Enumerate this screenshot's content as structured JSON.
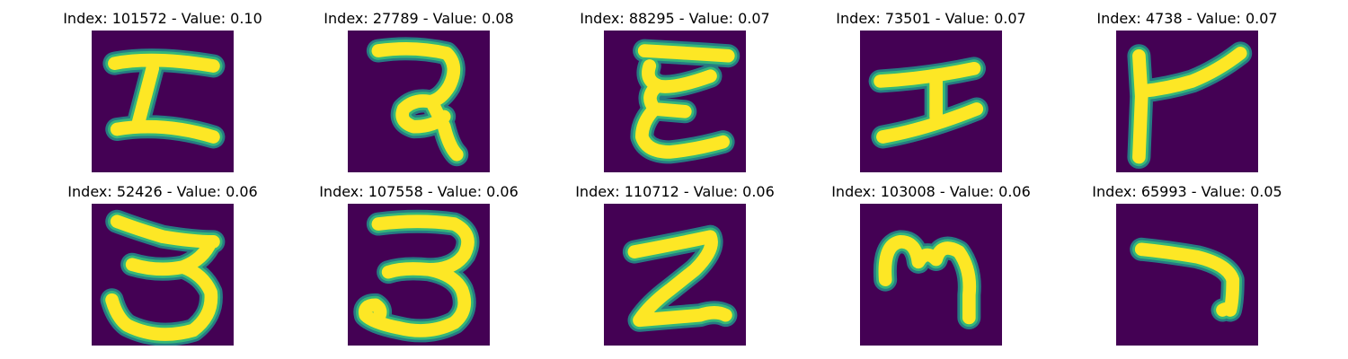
{
  "colors": {
    "background": "#440154",
    "ink": "#fde725",
    "edge": "#35b779",
    "halo": "#21918c"
  },
  "panels": [
    {
      "index": "101572",
      "value": "0.10",
      "title": "Index: 101572 - Value: 0.10",
      "glyph": "stylized-I-shape"
    },
    {
      "index": "27789",
      "value": "0.08",
      "title": "Index: 27789 - Value: 0.08",
      "glyph": "devanagari-ra-like-shape"
    },
    {
      "index": "88295",
      "value": "0.07",
      "title": "Index: 88295 - Value: 0.07",
      "glyph": "stacked-E-shape"
    },
    {
      "index": "73501",
      "value": "0.07",
      "title": "Index: 73501 - Value: 0.07",
      "glyph": "H-like-shape"
    },
    {
      "index": "4738",
      "value": "0.07",
      "title": "Index: 4738 - Value: 0.07",
      "glyph": "angled-F-shape"
    },
    {
      "index": "52426",
      "value": "0.06",
      "title": "Index: 52426 - Value: 0.06",
      "glyph": "three-shape"
    },
    {
      "index": "107558",
      "value": "0.06",
      "title": "Index: 107558 - Value: 0.06",
      "glyph": "three-shape-thin"
    },
    {
      "index": "110712",
      "value": "0.06",
      "title": "Index: 110712 - Value: 0.06",
      "glyph": "two-shape-bold"
    },
    {
      "index": "103008",
      "value": "0.06",
      "title": "Index: 103008 - Value: 0.06",
      "glyph": "m-shape"
    },
    {
      "index": "65993",
      "value": "0.05",
      "title": "Index: 65993 - Value: 0.05",
      "glyph": "seven-shape"
    }
  ]
}
